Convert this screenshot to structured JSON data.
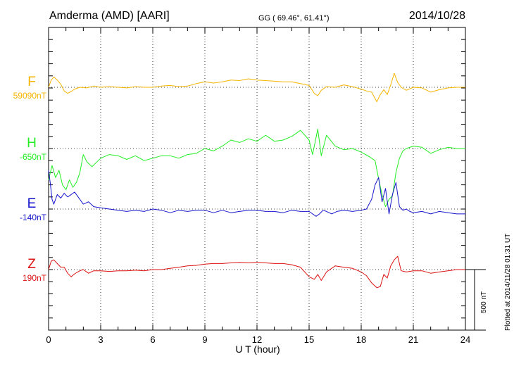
{
  "header": {
    "station": "Amderma (AMD)  [AARI]",
    "coords": "GG ( 69.46°,  61.41°)",
    "date": "2014/10/28"
  },
  "footer": {
    "plotted": "Plotted at 2014/11/28 01:31 UT"
  },
  "chart_data": {
    "type": "line",
    "xlabel": "U T (hour)",
    "xlim": [
      0,
      24
    ],
    "x_ticks": [
      "0",
      "3",
      "6",
      "9",
      "12",
      "15",
      "18",
      "21",
      "24"
    ],
    "scale_label": "500 nT",
    "scale_nT": 500,
    "grid": true,
    "series": [
      {
        "name": "F",
        "baseline": "59090nT",
        "color": "#f5b400",
        "x": [
          0,
          0.15,
          0.3,
          0.5,
          0.7,
          0.9,
          1.1,
          1.3,
          1.5,
          1.8,
          2.2,
          2.6,
          3,
          3.5,
          4,
          4.5,
          5,
          5.5,
          6,
          6.5,
          7,
          7.5,
          8,
          8.5,
          9,
          9.5,
          10,
          10.5,
          11,
          11.5,
          12,
          12.5,
          13,
          13.5,
          14,
          14.5,
          15,
          15.3,
          15.5,
          15.7,
          16,
          16.5,
          17,
          17.5,
          18,
          18.3,
          18.6,
          18.9,
          19.1,
          19.3,
          19.5,
          19.7,
          19.9,
          20.1,
          20.3,
          20.6,
          21,
          21.5,
          22,
          22.5,
          23,
          23.5,
          24
        ],
        "values": [
          0,
          60,
          85,
          60,
          25,
          -30,
          -50,
          -35,
          -15,
          0,
          -5,
          10,
          0,
          5,
          0,
          -5,
          5,
          0,
          0,
          10,
          15,
          5,
          10,
          30,
          45,
          35,
          45,
          60,
          55,
          70,
          60,
          55,
          50,
          45,
          45,
          30,
          15,
          -50,
          -70,
          -25,
          5,
          0,
          20,
          5,
          -15,
          -30,
          -40,
          -120,
          -60,
          -20,
          -60,
          20,
          115,
          40,
          0,
          -25,
          0,
          -5,
          -40,
          -20,
          -5,
          0,
          0
        ]
      },
      {
        "name": "H",
        "baseline": "-650nT",
        "color": "#22ee22",
        "x": [
          0,
          0.2,
          0.4,
          0.6,
          0.8,
          1,
          1.2,
          1.4,
          1.6,
          1.8,
          2,
          2.2,
          2.5,
          3,
          3.5,
          4,
          4.5,
          5,
          5.5,
          6,
          6.5,
          7,
          7.5,
          8,
          8.5,
          9,
          9.5,
          10,
          10.5,
          11,
          11.5,
          12,
          12.5,
          13,
          13.5,
          14,
          14.5,
          15,
          15.2,
          15.5,
          15.7,
          16,
          16.5,
          17,
          17.5,
          18,
          18.5,
          18.8,
          19,
          19.2,
          19.4,
          19.6,
          19.8,
          20,
          20.2,
          20.4,
          20.6,
          21,
          21.5,
          22,
          22.5,
          23,
          23.5,
          24
        ],
        "values": [
          -260,
          -140,
          -240,
          -180,
          -300,
          -340,
          -260,
          -320,
          -280,
          -200,
          -50,
          -110,
          -150,
          -80,
          -50,
          -60,
          -90,
          -60,
          -100,
          -80,
          -60,
          -60,
          -80,
          -50,
          -40,
          0,
          -20,
          20,
          70,
          50,
          80,
          60,
          110,
          60,
          70,
          100,
          150,
          70,
          -50,
          160,
          -60,
          110,
          20,
          -10,
          0,
          -30,
          -70,
          -100,
          -250,
          -380,
          -480,
          -420,
          -390,
          -200,
          -80,
          -20,
          0,
          20,
          10,
          -40,
          -10,
          10,
          0,
          0
        ]
      },
      {
        "name": "E",
        "baseline": "-140nT",
        "color": "#1515cc",
        "x": [
          0,
          0.1,
          0.2,
          0.3,
          0.5,
          0.7,
          0.9,
          1.1,
          1.3,
          1.5,
          1.8,
          2,
          2.3,
          2.6,
          3,
          3.5,
          4,
          4.5,
          5,
          5.5,
          6,
          6.5,
          7,
          7.5,
          8,
          8.5,
          9,
          9.5,
          10,
          10.5,
          11,
          11.5,
          12,
          12.5,
          13,
          13.5,
          14,
          14.5,
          15,
          15.2,
          15.4,
          15.6,
          15.8,
          16,
          16.3,
          16.6,
          17,
          17.5,
          18,
          18.3,
          18.6,
          18.8,
          19,
          19.2,
          19.4,
          19.6,
          19.8,
          20,
          20.2,
          20.4,
          20.6,
          20.8,
          21,
          21.5,
          22,
          22.5,
          23,
          23.5,
          24
        ],
        "values": [
          320,
          210,
          80,
          40,
          120,
          90,
          130,
          100,
          120,
          140,
          80,
          40,
          60,
          20,
          10,
          0,
          -10,
          -20,
          -10,
          -20,
          0,
          -10,
          -30,
          -10,
          -20,
          -10,
          -10,
          -30,
          -10,
          -30,
          -20,
          -10,
          -10,
          -20,
          -20,
          -30,
          -10,
          -20,
          -20,
          -40,
          -60,
          -40,
          -10,
          -20,
          -40,
          -20,
          -10,
          -20,
          -10,
          0,
          80,
          200,
          260,
          60,
          170,
          -40,
          120,
          220,
          20,
          -10,
          0,
          -20,
          -30,
          -20,
          -40,
          -20,
          -30,
          -40,
          -40
        ]
      },
      {
        "name": "Z",
        "baseline": "190nT",
        "color": "#dd1111",
        "x": [
          0,
          0.15,
          0.3,
          0.5,
          0.7,
          0.9,
          1.1,
          1.3,
          1.5,
          1.8,
          2,
          2.3,
          2.6,
          3,
          3.5,
          4,
          4.5,
          5,
          5.5,
          6,
          6.5,
          7,
          7.5,
          8,
          8.5,
          9,
          9.5,
          10,
          10.5,
          11,
          11.5,
          12,
          12.5,
          13,
          13.5,
          14,
          14.5,
          15,
          15.3,
          15.5,
          15.7,
          16,
          16.5,
          17,
          17.5,
          18,
          18.3,
          18.6,
          18.9,
          19.1,
          19.3,
          19.5,
          19.7,
          19.9,
          20.1,
          20.3,
          20.6,
          21,
          21.5,
          22,
          22.5,
          23,
          23.5,
          24
        ],
        "values": [
          0,
          70,
          80,
          50,
          20,
          20,
          -30,
          -60,
          -35,
          -10,
          0,
          -30,
          -10,
          -10,
          -15,
          -10,
          -10,
          -5,
          -10,
          0,
          0,
          10,
          20,
          30,
          35,
          45,
          50,
          50,
          55,
          60,
          55,
          60,
          55,
          50,
          50,
          40,
          20,
          -60,
          -80,
          -40,
          -90,
          -20,
          30,
          20,
          10,
          -20,
          -50,
          -110,
          -150,
          -140,
          -40,
          -70,
          30,
          80,
          110,
          -10,
          -20,
          -10,
          -10,
          -30,
          -20,
          -10,
          0,
          0
        ]
      }
    ]
  }
}
